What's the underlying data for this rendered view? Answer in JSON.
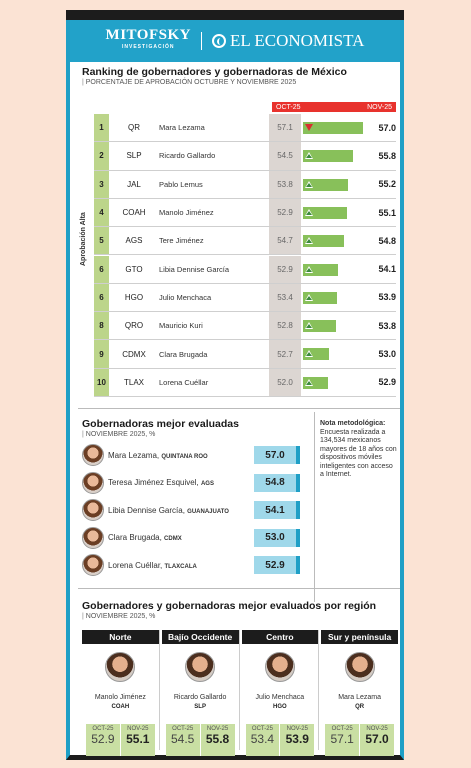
{
  "header": {
    "brand1": "MITOFSKY",
    "brand1_sub": "INVESTIGACIÓN",
    "brand2": "EL ECONOMISTA"
  },
  "ranking": {
    "title": "Ranking de gobernadores y gobernadoras de México",
    "subtitle": "PORCENTAJE DE APROBACIÓN OCTUBRE Y NOVIEMBRE 2025",
    "legend_oct": "OCT-25",
    "legend_nov": "NOV-25",
    "ylabel": "Aprobación Alta"
  },
  "chart_data": {
    "type": "bar",
    "title": "Ranking de gobernadores y gobernadoras de México",
    "xlabel": "",
    "ylabel": "Aprobación Alta",
    "rows": [
      {
        "rank": "1",
        "state": "QR",
        "name": "Mara Lezama",
        "oct": 57.1,
        "nov": 57.0,
        "trend": "down"
      },
      {
        "rank": "2",
        "state": "SLP",
        "name": "Ricardo Gallardo",
        "oct": 54.5,
        "nov": 55.8,
        "trend": "up"
      },
      {
        "rank": "3",
        "state": "JAL",
        "name": "Pablo Lemus",
        "oct": 53.8,
        "nov": 55.2,
        "trend": "up"
      },
      {
        "rank": "4",
        "state": "COAH",
        "name": "Manolo Jiménez",
        "oct": 52.9,
        "nov": 55.1,
        "trend": "up"
      },
      {
        "rank": "5",
        "state": "AGS",
        "name": "Tere Jiménez",
        "oct": 54.7,
        "nov": 54.8,
        "trend": "up"
      },
      {
        "rank": "6",
        "state": "GTO",
        "name": "Libia Dennise García",
        "oct": 52.9,
        "nov": 54.1,
        "trend": "up"
      },
      {
        "rank": "6",
        "state": "HGO",
        "name": "Julio Menchaca",
        "oct": 53.4,
        "nov": 53.9,
        "trend": "up"
      },
      {
        "rank": "8",
        "state": "QRO",
        "name": "Mauricio Kuri",
        "oct": 52.8,
        "nov": 53.8,
        "trend": "up"
      },
      {
        "rank": "9",
        "state": "CDMX",
        "name": "Clara Brugada",
        "oct": 52.7,
        "nov": 53.0,
        "trend": "up"
      },
      {
        "rank": "10",
        "state": "TLAX",
        "name": "Lorena Cuéllar",
        "oct": 52.0,
        "nov": 52.9,
        "trend": "up"
      }
    ]
  },
  "best": {
    "title": "Gobernadoras mejor evaluadas",
    "subtitle": "NOVIEMBRE 2025, %",
    "items": [
      {
        "name": "Mara Lezama,",
        "state": "QUINTANA ROO",
        "value": "57.0"
      },
      {
        "name": "Teresa Jiménez Esquivel,",
        "state": "AGS",
        "value": "54.8"
      },
      {
        "name": "Libia Dennise García,",
        "state": "GUANAJUATO",
        "value": "54.1"
      },
      {
        "name": "Clara Brugada,",
        "state": "CDMX",
        "value": "53.0"
      },
      {
        "name": "Lorena Cuéllar,",
        "state": "TLAXCALA",
        "value": "52.9"
      }
    ]
  },
  "note": {
    "title": "Nota metodológica:",
    "text": "Encuesta realizada a 134,534 mexicanos mayores de 18 años con dispositivos móviles inteligentes con acceso a Internet."
  },
  "regions": {
    "title": "Gobernadores y gobernadoras mejor evaluados por región",
    "subtitle": "NOVIEMBRE 2025, %",
    "oct_label": "OCT-25",
    "nov_label": "NOV-25",
    "items": [
      {
        "region": "Norte",
        "name": "Manolo Jiménez",
        "state": "COAH",
        "oct": "52.9",
        "nov": "55.1"
      },
      {
        "region": "Bajío Occidente",
        "name": "Ricardo Gallardo",
        "state": "SLP",
        "oct": "54.5",
        "nov": "55.8"
      },
      {
        "region": "Centro",
        "name": "Julio Menchaca",
        "state": "HGO",
        "oct": "53.4",
        "nov": "53.9"
      },
      {
        "region": "Sur y península",
        "name": "Mara Lezama",
        "state": "QR",
        "oct": "57.1",
        "nov": "57.0"
      }
    ]
  }
}
